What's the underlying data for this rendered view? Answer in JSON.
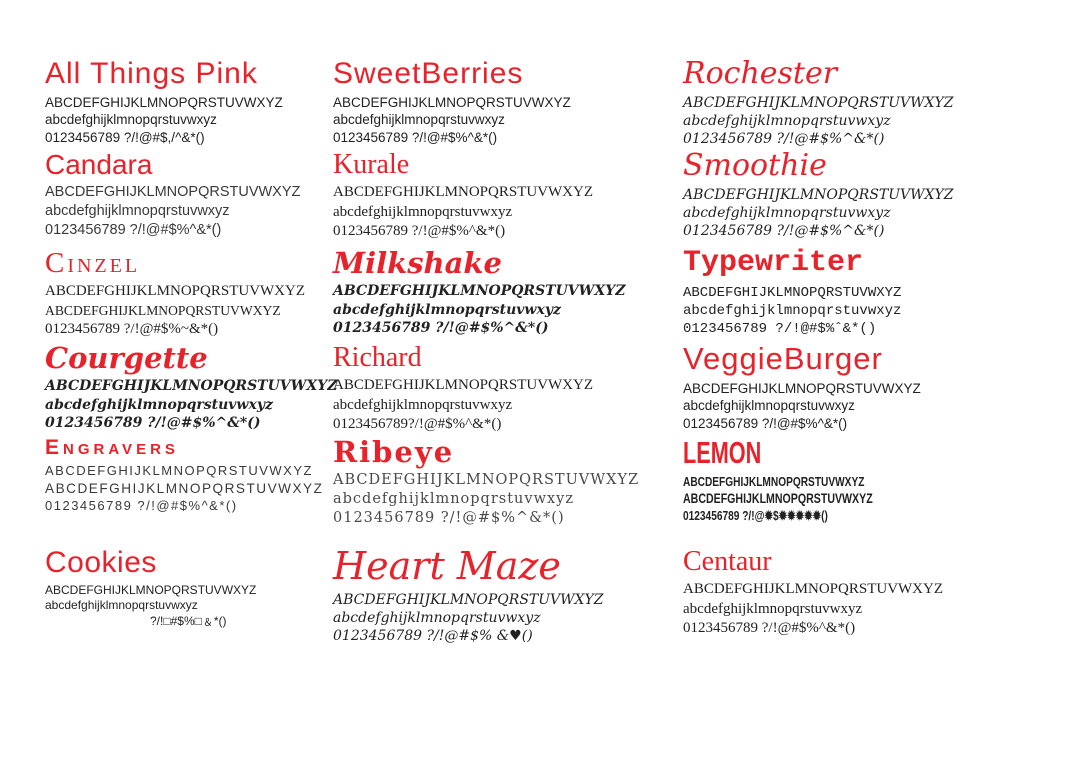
{
  "page": {
    "background": "#ffffff",
    "accent_red": "#e8222a",
    "text_color": "#222222",
    "description": "Font specimen sheet, 3 columns x 6 rows"
  },
  "specimens": [
    {
      "name": "All Things Pink",
      "style": "hand",
      "upper": "ABCDEFGHIJKLMNOPQRSTUVWXYZ",
      "lower": "abcdefghijklmnopqrstuvwxyz",
      "symbols": "0123456789 ?/!@#$,/^&*()"
    },
    {
      "name": "Candara",
      "style": "sans",
      "upper": "ABCDEFGHIJKLMNOPQRSTUVWXYZ",
      "lower": "abcdefghijklmnopqrstuvwxyz",
      "symbols": "0123456789 ?/!@#$%^&*()"
    },
    {
      "name": "Cinzel",
      "style": "caps-serif",
      "lower_small": true,
      "upper": "ABCDEFGHIJKLMNOPQRSTUVWXYZ",
      "lower": "ABCDEFGHIJKLMNOPQRSTUVWXYZ",
      "symbols": "0123456789 ?/!@#$%~&*()"
    },
    {
      "name": "Courgette",
      "style": "script-bold",
      "upper": "ABCDEFGHIJKLMNOPQRSTUVWXYZ",
      "lower": "abcdefghijklmnopqrstuvwxyz",
      "symbols": "0123456789 ?/!@#$%^&*()"
    },
    {
      "name": "Engravers",
      "style": "caps-sans",
      "lower_small": true,
      "upper": "ABCDEFGHIJKLMNOPQRSTUVWXYZ",
      "lower": "ABCDEFGHIJKLMNOPQRSTUVWXYZ",
      "symbols": "0123456789 ?/!@#$%^&*()"
    },
    {
      "name": "Cookies",
      "style": "thin",
      "symbols_indent": true,
      "upper": "ABCDEFGHIJKLMNOPQRSTUVWXYZ",
      "lower": "abcdefghijklmnopqrstuvwxyz",
      "symbols": "?/!□#$%□﹠*()"
    },
    {
      "name": "SweetBerries",
      "style": "hand",
      "upper": "ABCDEFGHIJKLMNOPQRSTUVWXYZ",
      "lower": "abcdefghijklmnopqrstuvwxyz",
      "symbols": "0123456789 ?/!@#$%^&*()"
    },
    {
      "name": "Kurale",
      "style": "serif",
      "upper": "ABCDEFGHIJKLMNOPQRSTUVWXYZ",
      "lower": "abcdefghijklmnopqrstuvwxyz",
      "symbols": "0123456789 ?/!@#$%^&*()"
    },
    {
      "name": "Milkshake",
      "style": "script-bold",
      "upper": "ABCDEFGHIJKLMNOPQRSTUVWXYZ",
      "lower": "abcdefghijklmnopqrstuvwxyz",
      "symbols": "0123456789 ?/!@#$%^&*()"
    },
    {
      "name": "Richard",
      "style": "serif",
      "upper": "ABCDEFGHIJKLMNOPQRSTUVWXYZ",
      "lower": "abcdefghijklmnopqrstuvwxyz",
      "symbols": "0123456789?/!@#$%^&*()"
    },
    {
      "name": "Ribeye",
      "style": "slab",
      "upper": "ABCDEFGHIJKLMNOPQRSTUVWXYZ",
      "lower": "abcdefghijklmnopqrstuvwxyz",
      "symbols": "0123456789 ?/!@#$%^&*()"
    },
    {
      "name": "Heart Maze",
      "style": "big-script",
      "upper": "ABCDEFGHIJKLMNOPQRSTUVWXYZ",
      "lower": "abcdefghijklmnopqrstuvwxyz",
      "symbols": "0123456789 ?/!@#$% &♥()"
    },
    {
      "name": "Rochester",
      "style": "script",
      "upper": "ABCDEFGHIJKLMNOPQRSTUVWXYZ",
      "lower": "abcdefghijklmnopqrstuvwxyz",
      "symbols": "0123456789 ?/!@#$%^&*()"
    },
    {
      "name": "Smoothie",
      "style": "script",
      "upper": "ABCDEFGHIJKLMNOPQRSTUVWXYZ",
      "lower": "abcdefghijklmnopqrstuvwxyz",
      "symbols": "0123456789 ?/!@#$%^&*()"
    },
    {
      "name": "Typewriter",
      "style": "mono",
      "upper": "ABCDEFGHIJKLMNOPQRSTUVWXYZ",
      "lower": "abcdefghijklmnopqrstuvwxyz",
      "symbols": "0123456789 ?/!@#$%ˆ&*()"
    },
    {
      "name": "VeggieBurger",
      "style": "round",
      "upper": "ABCDEFGHIJKLMNOPQRSTUVWXYZ",
      "lower": "abcdefghijklmnopqrstuvwxyz",
      "symbols": "0123456789 ?/!@#$%^&*()"
    },
    {
      "name": "LEMON",
      "style": "narrow",
      "lower_small": true,
      "upper": "ABCDEFGHIJKLMNOPQRSTUVWXYZ",
      "lower": "ABCDEFGHIJKLMNOPQRSTUVWXYZ",
      "symbols": "0123456789 ?/!@✹$✹✹✹✹✹()"
    },
    {
      "name": "Centaur",
      "style": "serif",
      "upper": "ABCDEFGHIJKLMNOPQRSTUVWXYZ",
      "lower": "abcdefghijklmnopqrstuvwxyz",
      "symbols": "0123456789 ?/!@#$%^&*()"
    }
  ]
}
